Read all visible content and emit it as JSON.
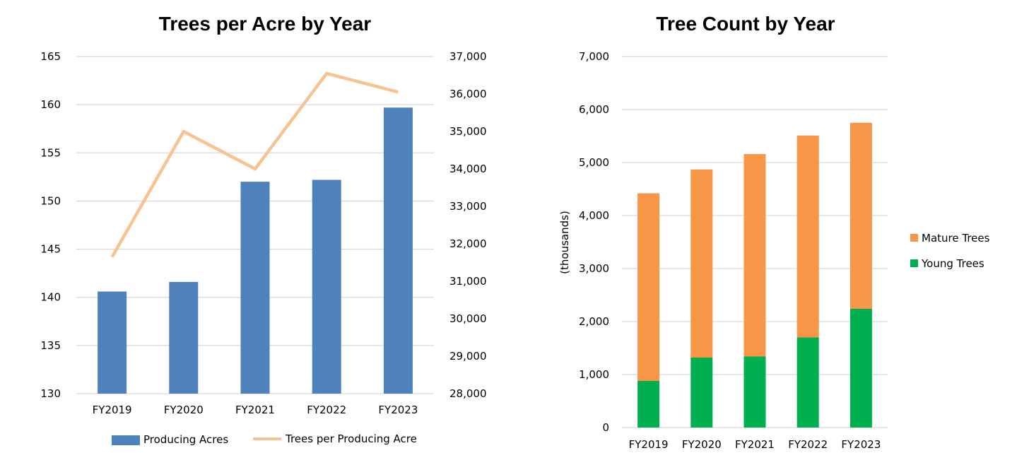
{
  "chart_data": [
    {
      "type": "bar",
      "title": "Trees per Acre by Year",
      "categories": [
        "FY2019",
        "FY2020",
        "FY2021",
        "FY2022",
        "FY2023"
      ],
      "series": [
        {
          "name": "Producing Acres",
          "type": "bar",
          "axis": "left",
          "color": "#4f81bd",
          "values": [
            140.6,
            141.6,
            152.0,
            152.2,
            159.7
          ]
        },
        {
          "name": "Trees per Producing Acre",
          "type": "line",
          "axis": "right",
          "color": "#f8c390",
          "values": [
            31650,
            35000,
            34000,
            36550,
            36050
          ]
        }
      ],
      "y_left": {
        "min": 130,
        "max": 165,
        "ticks": [
          "130",
          "135",
          "140",
          "145",
          "150",
          "155",
          "160",
          "165"
        ]
      },
      "y_right": {
        "min": 28000,
        "max": 37000,
        "ticks": [
          "28,000",
          "29,000",
          "30,000",
          "31,000",
          "32,000",
          "33,000",
          "34,000",
          "35,000",
          "36,000",
          "37,000"
        ]
      },
      "grid": true,
      "legend": "bottom"
    },
    {
      "type": "bar",
      "stacked": true,
      "title": "Tree Count by Year",
      "ylabel": "(thousands)",
      "categories": [
        "FY2019",
        "FY2020",
        "FY2021",
        "FY2022",
        "FY2023"
      ],
      "series": [
        {
          "name": "Young Trees",
          "color": "#00b050",
          "values": [
            880,
            1320,
            1340,
            1700,
            2240
          ]
        },
        {
          "name": "Mature Trees",
          "color": "#f79646",
          "values": [
            3540,
            3550,
            3820,
            3810,
            3510
          ]
        }
      ],
      "ylim": [
        0,
        7000
      ],
      "yticks": [
        "0",
        "1,000",
        "2,000",
        "3,000",
        "4,000",
        "5,000",
        "6,000",
        "7,000"
      ],
      "grid": true,
      "legend": "right",
      "legend_order": [
        "Mature Trees",
        "Young Trees"
      ]
    }
  ]
}
